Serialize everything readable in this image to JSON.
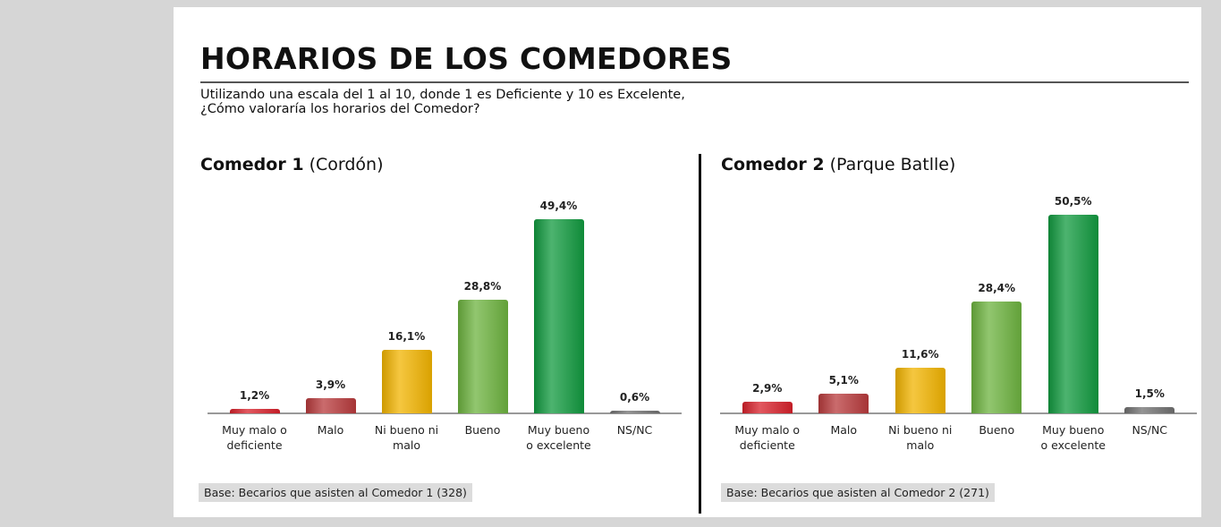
{
  "title": "HORARIOS DE LOS COMEDORES",
  "subtitle": [
    "Utilizando una escala del 1 al 10, donde 1 es Deficiente y 10 es Excelente,",
    "¿Cómo valoraría los horarios del Comedor?"
  ],
  "chart_data": [
    {
      "type": "bar",
      "title": "Comedor 1",
      "subtitle": "(Cordón)",
      "categories": [
        "Muy malo o deficiente",
        "Malo",
        "Ni bueno ni malo",
        "Bueno",
        "Muy bueno o excelente",
        "NS/NC"
      ],
      "values": [
        1.2,
        3.9,
        16.1,
        28.8,
        49.4,
        0.6
      ],
      "value_labels": [
        "1,2%",
        "3,9%",
        "16,1%",
        "28,8%",
        "49,4%",
        "0,6%"
      ],
      "colors": [
        "#d8202a",
        "#b83a3c",
        "#f2b400",
        "#6db33f",
        "#119a3f",
        "#707070"
      ],
      "ylim": [
        0,
        55
      ],
      "note": "Base: Becarios que asisten al Comedor 1 (328)"
    },
    {
      "type": "bar",
      "title": "Comedor 2",
      "subtitle": "(Parque Batlle)",
      "categories": [
        "Muy malo o deficiente",
        "Malo",
        "Ni bueno ni malo",
        "Bueno",
        "Muy bueno o excelente",
        "NS/NC"
      ],
      "values": [
        2.9,
        5.1,
        11.6,
        28.4,
        50.5,
        1.5
      ],
      "value_labels": [
        "2,9%",
        "5,1%",
        "11,6%",
        "28,4%",
        "50,5%",
        "1,5%"
      ],
      "colors": [
        "#d8202a",
        "#b83a3c",
        "#f2b400",
        "#6db33f",
        "#119a3f",
        "#707070"
      ],
      "ylim": [
        0,
        55
      ],
      "note": "Base: Becarios que asisten al Comedor 2 (271)"
    }
  ]
}
